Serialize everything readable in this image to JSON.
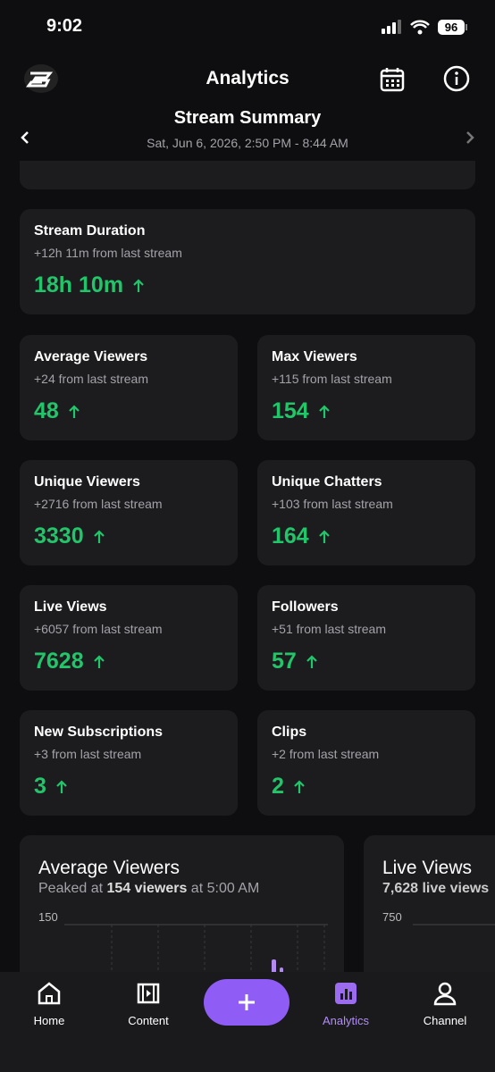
{
  "status_bar": {
    "time": "9:02",
    "battery": "96"
  },
  "header": {
    "title": "Analytics",
    "summary_title": "Stream Summary",
    "date_range": "Sat, Jun 6, 2026, 2:50 PM - 8:44 AM"
  },
  "cards": [
    {
      "title": "Stream Duration",
      "change": "+12h 11m from last stream",
      "value": "18h 10m"
    },
    {
      "title": "Average Viewers",
      "change": "+24 from last stream",
      "value": 48
    },
    {
      "title": "Max Viewers",
      "change": "+115 from last stream",
      "value": 154
    },
    {
      "title": "Unique Viewers",
      "change": "+2716 from last stream",
      "value": 3330
    },
    {
      "title": "Unique Chatters",
      "change": "+103 from last stream",
      "value": 164
    },
    {
      "title": "Live Views",
      "change": "+6057 from last stream",
      "value": 7628
    },
    {
      "title": "Followers",
      "change": "+51 from last stream",
      "value": 57
    },
    {
      "title": "New Subscriptions",
      "change": "+3 from last stream",
      "value": 3
    },
    {
      "title": "Clips",
      "change": "+2 from last stream",
      "value": 2
    }
  ],
  "charts": [
    {
      "title": "Average Viewers",
      "subtitle": [
        "Peaked at ",
        "154 viewers",
        " at 5:00 AM"
      ],
      "y_tick": 150
    },
    {
      "title": "Live Views",
      "subtitle": [
        "7,628 live views"
      ],
      "y_tick": 750
    }
  ],
  "nav": [
    "Home",
    "Content",
    "Analytics",
    "Channel"
  ]
}
